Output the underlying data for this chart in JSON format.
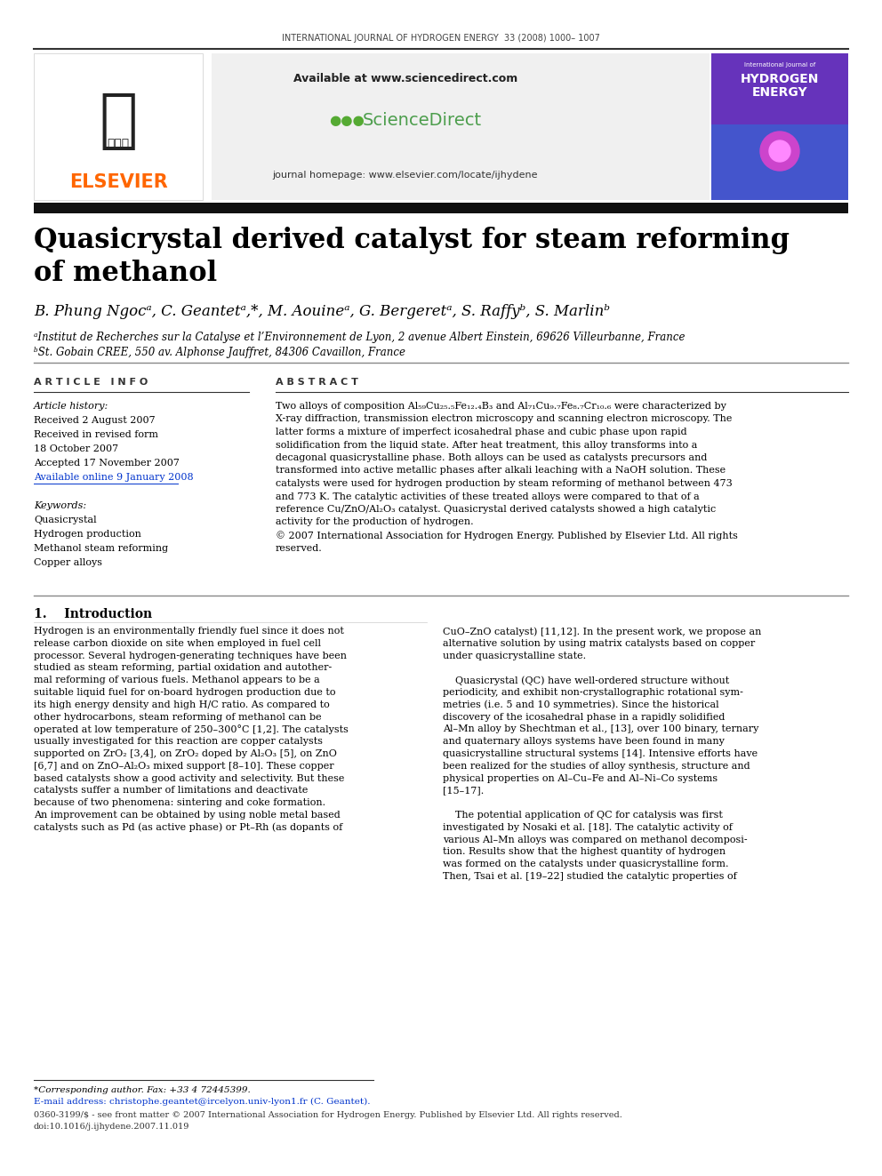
{
  "page_width": 9.92,
  "page_height": 13.23,
  "dpi": 100,
  "background_color": "#ffffff",
  "journal_header": "INTERNATIONAL JOURNAL OF HYDROGEN ENERGY  33 (2008) 1000– 1007",
  "available_text": "Available at www.sciencedirect.com",
  "journal_homepage": "journal homepage: www.elsevier.com/locate/ijhydene",
  "elsevier_color": "#FF6600",
  "elsevier_text": "ELSEVIER",
  "sciencedirect_text": "ScienceDirect",
  "sciencedirect_color": "#4d9e4d",
  "paper_title_line1": "Quasicrystal derived catalyst for steam reforming",
  "paper_title_line2": "of methanol",
  "authors": "B. Phung Ngocᵃ, C. Geantetᵃ,*, M. Aouineᵃ, G. Bergeretᵃ, S. Raffyᵇ, S. Marlinᵇ",
  "affiliation_a": "ᵃInstitut de Recherches sur la Catalyse et l’Environnement de Lyon, 2 avenue Albert Einstein, 69626 Villeurbanne, France",
  "affiliation_b": "ᵇSt. Gobain CREE, 550 av. Alphonse Jauffret, 84306 Cavaillon, France",
  "article_info_header": "A R T I C L E   I N F O",
  "abstract_header": "A B S T R A C T",
  "article_history_label": "Article history:",
  "received_1": "Received 2 August 2007",
  "received_revised_1": "Received in revised form",
  "received_revised_2": "18 October 2007",
  "accepted": "Accepted 17 November 2007",
  "available_online": "Available online 9 January 2008",
  "keywords_label": "Keywords:",
  "keyword_1": "Quasicrystal",
  "keyword_2": "Hydrogen production",
  "keyword_3": "Methanol steam reforming",
  "keyword_4": "Copper alloys",
  "abstract_lines": [
    "Two alloys of composition Al₅₉Cu₂₅.₅Fe₁₂.₄B₃ and Al₇₁Cu₉.₇Fe₈.₇Cr₁₀.₆ were characterized by",
    "X-ray diffraction, transmission electron microscopy and scanning electron microscopy. The",
    "latter forms a mixture of imperfect icosahedral phase and cubic phase upon rapid",
    "solidification from the liquid state. After heat treatment, this alloy transforms into a",
    "decagonal quasicrystalline phase. Both alloys can be used as catalysts precursors and",
    "transformed into active metallic phases after alkali leaching with a NaOH solution. These",
    "catalysts were used for hydrogen production by steam reforming of methanol between 473",
    "and 773 K. The catalytic activities of these treated alloys were compared to that of a",
    "reference Cu/ZnO/Al₂O₃ catalyst. Quasicrystal derived catalysts showed a high catalytic",
    "activity for the production of hydrogen.",
    "© 2007 International Association for Hydrogen Energy. Published by Elsevier Ltd. All rights",
    "reserved."
  ],
  "intro_heading": "1.    Introduction",
  "col1_lines": [
    "Hydrogen is an environmentally friendly fuel since it does not",
    "release carbon dioxide on site when employed in fuel cell",
    "processor. Several hydrogen-generating techniques have been",
    "studied as steam reforming, partial oxidation and autother-",
    "mal reforming of various fuels. Methanol appears to be a",
    "suitable liquid fuel for on-board hydrogen production due to",
    "its high energy density and high H/C ratio. As compared to",
    "other hydrocarbons, steam reforming of methanol can be",
    "operated at low temperature of 250–300°C [1,2]. The catalysts",
    "usually investigated for this reaction are copper catalysts",
    "supported on ZrO₂ [3,4], on ZrO₂ doped by Al₂O₃ [5], on ZnO",
    "[6,7] and on ZnO–Al₂O₃ mixed support [8–10]. These copper",
    "based catalysts show a good activity and selectivity. But these",
    "catalysts suffer a number of limitations and deactivate",
    "because of two phenomena: sintering and coke formation.",
    "An improvement can be obtained by using noble metal based",
    "catalysts such as Pd (as active phase) or Pt–Rh (as dopants of"
  ],
  "col2_lines": [
    "CuO–ZnO catalyst) [11,12]. In the present work, we propose an",
    "alternative solution by using matrix catalysts based on copper",
    "under quasicrystalline state.",
    "",
    "    Quasicrystal (QC) have well-ordered structure without",
    "periodicity, and exhibit non-crystallographic rotational sym-",
    "metries (i.e. 5 and 10 symmetries). Since the historical",
    "discovery of the icosahedral phase in a rapidly solidified",
    "Al–Mn alloy by Shechtman et al., [13], over 100 binary, ternary",
    "and quaternary alloys systems have been found in many",
    "quasicrystalline structural systems [14]. Intensive efforts have",
    "been realized for the studies of alloy synthesis, structure and",
    "physical properties on Al–Cu–Fe and Al–Ni–Co systems",
    "[15–17].",
    "",
    "    The potential application of QC for catalysis was first",
    "investigated by Nosaki et al. [18]. The catalytic activity of",
    "various Al–Mn alloys was compared on methanol decomposi-",
    "tion. Results show that the highest quantity of hydrogen",
    "was formed on the catalysts under quasicrystalline form.",
    "Then, Tsai et al. [19–22] studied the catalytic properties of"
  ],
  "footnote_corresponding": "*Corresponding author. Fax: +33 4 72445399.",
  "footnote_email": "E-mail address: christophe.geantet@ircelyon.univ-lyon1.fr (C. Geantet).",
  "footnote_copyright": "0360-3199/$ - see front matter © 2007 International Association for Hydrogen Energy. Published by Elsevier Ltd. All rights reserved.",
  "footnote_doi": "doi:10.1016/j.ijhydene.2007.11.019"
}
